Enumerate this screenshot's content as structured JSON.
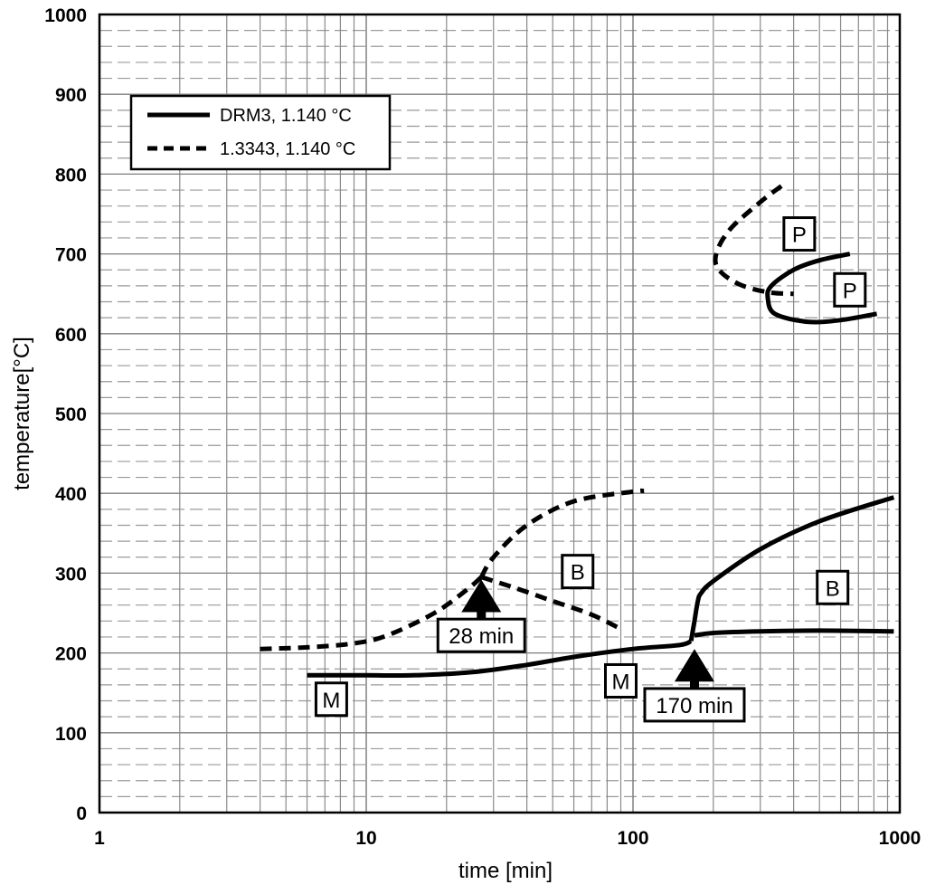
{
  "chart_data": {
    "type": "line",
    "xlabel": "time [min]",
    "ylabel": "temperature[°C]",
    "x_scale": "log",
    "xlim": [
      1,
      1000
    ],
    "ylim": [
      0,
      1000
    ],
    "x_ticks": [
      "1",
      "10",
      "100",
      "1000"
    ],
    "y_ticks": [
      "0",
      "100",
      "200",
      "300",
      "400",
      "500",
      "600",
      "700",
      "800",
      "900",
      "1000"
    ],
    "grid": true,
    "legend_position": "top-left",
    "legend": [
      {
        "label": "DRM3, 1.140 °C",
        "style": "solid"
      },
      {
        "label": "1.3343, 1.140 °C",
        "style": "dashed"
      }
    ],
    "series": [
      {
        "name": "DRM3, 1.140 °C",
        "style": "solid",
        "curves": [
          {
            "x": [
              6,
              10,
              15,
              25,
              40,
              60,
              100,
              150,
              165
            ],
            "y": [
              172,
              172,
              172,
              176,
              185,
              195,
              205,
              210,
              215
            ]
          },
          {
            "x": [
              170,
              200,
              300,
              500,
              950
            ],
            "y": [
              222,
              225,
              227,
              228,
              227
            ]
          },
          {
            "x": [
              165,
              170,
              175,
              180,
              200,
              300,
              500,
              950
            ],
            "y": [
              215,
              240,
              265,
              275,
              290,
              330,
              365,
              395
            ]
          },
          {
            "x": [
              650,
              500,
              400,
              330,
              320,
              340,
              450,
              600,
              820
            ],
            "y": [
              700,
              692,
              680,
              660,
              645,
              625,
              615,
              617,
              625
            ]
          }
        ]
      },
      {
        "name": "1.3343, 1.140 °C",
        "style": "dashed",
        "curves": [
          {
            "x": [
              4,
              6,
              9,
              12,
              18,
              24,
              27
            ],
            "y": [
              205,
              207,
              212,
              222,
              250,
              280,
              295
            ]
          },
          {
            "x": [
              27,
              30,
              40,
              60,
              100,
              110
            ],
            "y": [
              295,
              320,
              360,
              390,
              402,
              403
            ]
          },
          {
            "x": [
              27,
              35,
              50,
              70,
              90
            ],
            "y": [
              295,
              283,
              265,
              248,
              230
            ]
          },
          {
            "x": [
              360,
              300,
              230,
              205,
              210,
              250,
              320,
              400
            ],
            "y": [
              785,
              765,
              730,
              700,
              680,
              662,
              652,
              650
            ]
          }
        ]
      }
    ],
    "annotations": [
      {
        "text": "P",
        "x": 420,
        "y": 725
      },
      {
        "text": "P",
        "x": 650,
        "y": 655
      },
      {
        "text": "B",
        "x": 62,
        "y": 302
      },
      {
        "text": "B",
        "x": 560,
        "y": 282
      },
      {
        "text": "M",
        "x": 7.4,
        "y": 142
      },
      {
        "text": "M",
        "x": 90,
        "y": 165
      },
      {
        "text": "28 min",
        "x": 27,
        "y": 222,
        "arrow_to": {
          "x": 27,
          "y": 292
        }
      },
      {
        "text": "170 min",
        "x": 170,
        "y": 135,
        "arrow_to": {
          "x": 170,
          "y": 205
        }
      }
    ]
  }
}
